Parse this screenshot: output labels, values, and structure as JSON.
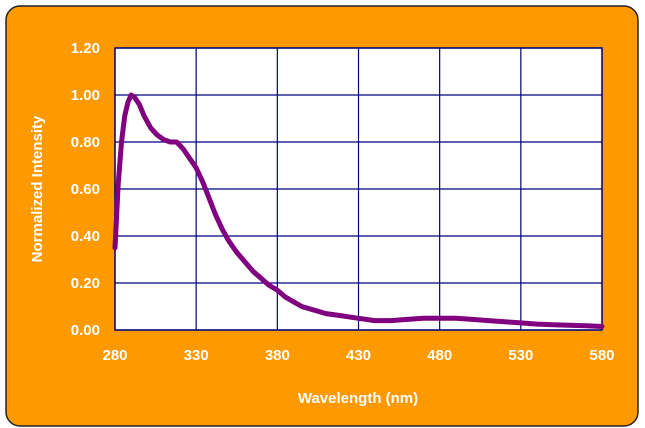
{
  "colors": {
    "frame_background": "#ff9900",
    "frame_border": "#222222",
    "plot_background": "#ffffff",
    "grid": "#000080",
    "series": "#800080",
    "text": "#ffffff"
  },
  "chart_data": {
    "type": "line",
    "title": "",
    "xlabel": "Wavelength (nm)",
    "ylabel": "Normalized Intensity",
    "xlim": [
      280,
      580
    ],
    "ylim": [
      0,
      1.2
    ],
    "grid": true,
    "legend": "none",
    "x_ticks": [
      280,
      330,
      380,
      430,
      480,
      530,
      580
    ],
    "x_tick_labels": [
      "280",
      "330",
      "380",
      "430",
      "480",
      "530",
      "580"
    ],
    "y_ticks": [
      0,
      0.2,
      0.4,
      0.6,
      0.8,
      1.0,
      1.2
    ],
    "y_tick_labels": [
      "0.00",
      "0.20",
      "0.40",
      "0.60",
      "0.80",
      "1.00",
      "1.20"
    ],
    "series": [
      {
        "x": [
          280,
          282,
          284,
          286,
          288,
          290,
          292,
          295,
          298,
          302,
          306,
          310,
          314,
          318,
          322,
          326,
          330,
          334,
          338,
          342,
          346,
          350,
          355,
          360,
          365,
          370,
          375,
          380,
          385,
          390,
          395,
          400,
          410,
          420,
          430,
          440,
          450,
          460,
          470,
          480,
          490,
          500,
          510,
          520,
          530,
          540,
          550,
          560,
          570,
          580
        ],
        "y": [
          0.35,
          0.62,
          0.8,
          0.91,
          0.97,
          1.0,
          0.99,
          0.96,
          0.91,
          0.86,
          0.83,
          0.81,
          0.8,
          0.8,
          0.77,
          0.73,
          0.69,
          0.63,
          0.56,
          0.49,
          0.43,
          0.38,
          0.33,
          0.29,
          0.25,
          0.22,
          0.19,
          0.17,
          0.14,
          0.12,
          0.1,
          0.09,
          0.07,
          0.06,
          0.05,
          0.04,
          0.04,
          0.045,
          0.05,
          0.05,
          0.05,
          0.045,
          0.04,
          0.035,
          0.03,
          0.025,
          0.022,
          0.02,
          0.018,
          0.015
        ]
      }
    ]
  }
}
